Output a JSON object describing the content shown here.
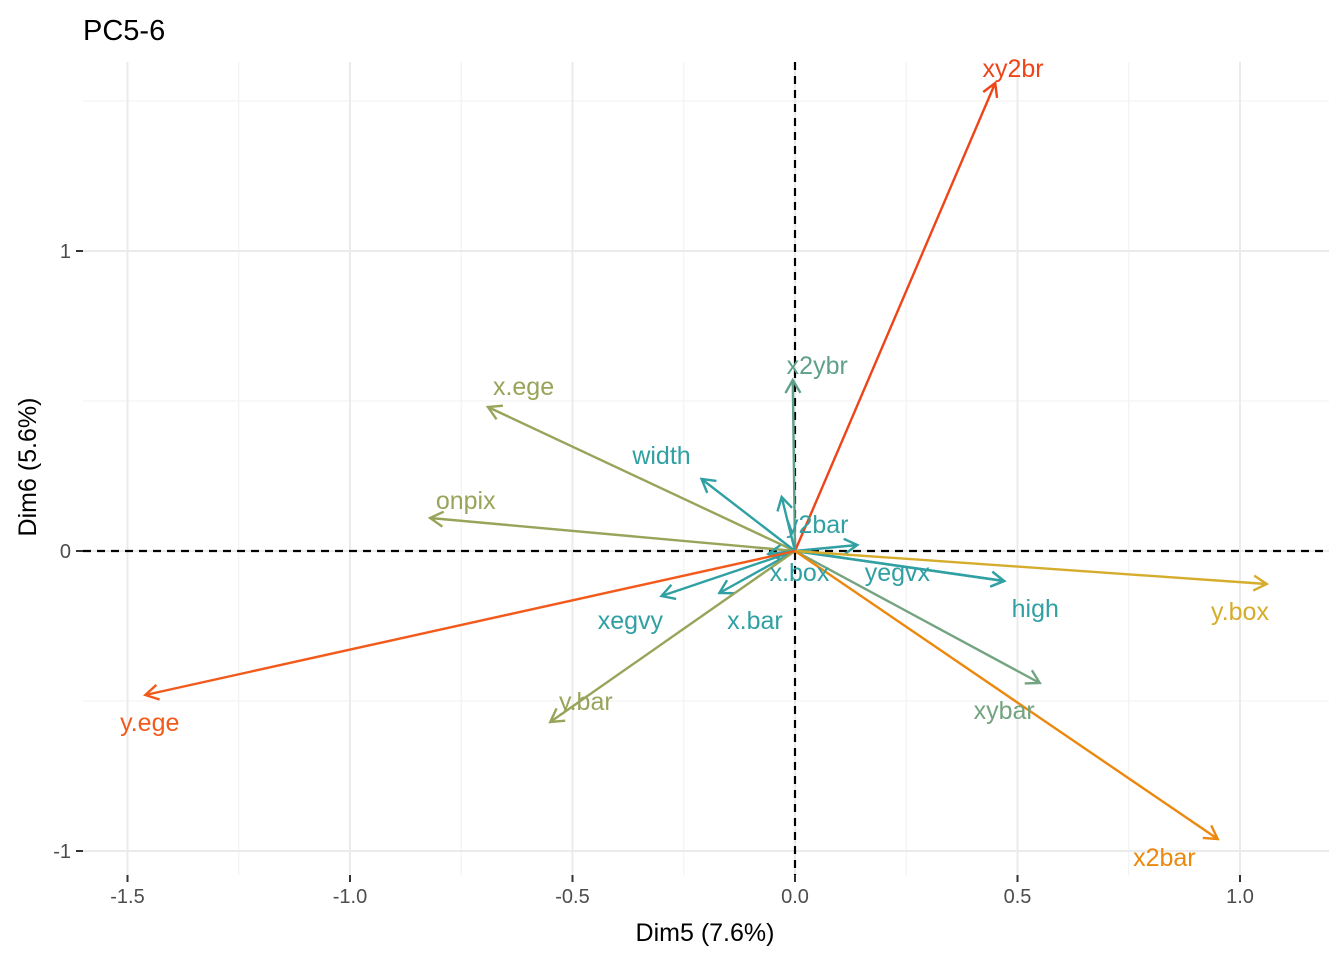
{
  "chart_data": {
    "type": "scatter",
    "subtype": "pca-variable-biplot",
    "title": "PC5-6",
    "xlabel": "Dim5 (7.6%)",
    "ylabel": "Dim6 (5.6%)",
    "xlim": [
      -1.6,
      1.2
    ],
    "ylim": [
      -1.08,
      1.63
    ],
    "x_ticks": [
      -1.5,
      -1.0,
      -0.5,
      0.0,
      0.5,
      1.0
    ],
    "x_tick_labels": [
      "-1.5",
      "-1.0",
      "-0.5",
      "0.0",
      "0.5",
      "1.0"
    ],
    "y_ticks": [
      -1,
      0,
      1
    ],
    "y_tick_labels": [
      "-1",
      "0",
      "1"
    ],
    "grid": true,
    "reference_lines": {
      "x": 0,
      "y": 0,
      "style": "dashed"
    },
    "vectors": [
      {
        "name": "xy2br",
        "x": 0.45,
        "y": 1.56,
        "color": "#EE4418",
        "lx": 0.49,
        "ly": 1.61
      },
      {
        "name": "x2ybr",
        "x": -0.005,
        "y": 0.57,
        "color": "#5FA08A",
        "lx": 0.05,
        "ly": 0.62
      },
      {
        "name": "x.ege",
        "x": -0.69,
        "y": 0.48,
        "color": "#97A45A",
        "lx": -0.61,
        "ly": 0.55
      },
      {
        "name": "width",
        "x": -0.21,
        "y": 0.24,
        "color": "#31A0A3",
        "lx": -0.3,
        "ly": 0.32
      },
      {
        "name": "onpix",
        "x": -0.82,
        "y": 0.11,
        "color": "#97A45A",
        "lx": -0.74,
        "ly": 0.17
      },
      {
        "name": "y2bar",
        "x": -0.03,
        "y": 0.18,
        "color": "#31A0A3",
        "lx": 0.05,
        "ly": 0.09
      },
      {
        "name": "",
        "x": 0.14,
        "y": 0.02,
        "color": "#31A0A3",
        "lx": 0.14,
        "ly": 0.02
      },
      {
        "name": "x.box",
        "x": -0.06,
        "y": -0.01,
        "color": "#31A0A3",
        "lx": 0.01,
        "ly": -0.07
      },
      {
        "name": "yegvx",
        "x": 0.47,
        "y": -0.1,
        "color": "#31A0A3",
        "lx": 0.23,
        "ly": -0.07
      },
      {
        "name": "xegvy",
        "x": -0.3,
        "y": -0.15,
        "color": "#31A0A3",
        "lx": -0.37,
        "ly": -0.23
      },
      {
        "name": "x.bar",
        "x": -0.17,
        "y": -0.14,
        "color": "#31A0A3",
        "lx": -0.09,
        "ly": -0.23
      },
      {
        "name": "high",
        "x": 0.47,
        "y": -0.1,
        "color": "#31A0A3",
        "lx": 0.54,
        "ly": -0.19
      },
      {
        "name": "y.box",
        "x": 1.06,
        "y": -0.11,
        "color": "#D5AC2B",
        "lx": 1.0,
        "ly": -0.2
      },
      {
        "name": "y.bar",
        "x": -0.55,
        "y": -0.57,
        "color": "#97A45A",
        "lx": -0.47,
        "ly": -0.5
      },
      {
        "name": "xybar",
        "x": 0.55,
        "y": -0.44,
        "color": "#73A37F",
        "lx": 0.47,
        "ly": -0.53
      },
      {
        "name": "y.ege",
        "x": -1.46,
        "y": -0.48,
        "color": "#F15A1A",
        "lx": -1.45,
        "ly": -0.57
      },
      {
        "name": "x2bar",
        "x": 0.95,
        "y": -0.96,
        "color": "#EB880E",
        "lx": 0.83,
        "ly": -1.02
      }
    ]
  }
}
